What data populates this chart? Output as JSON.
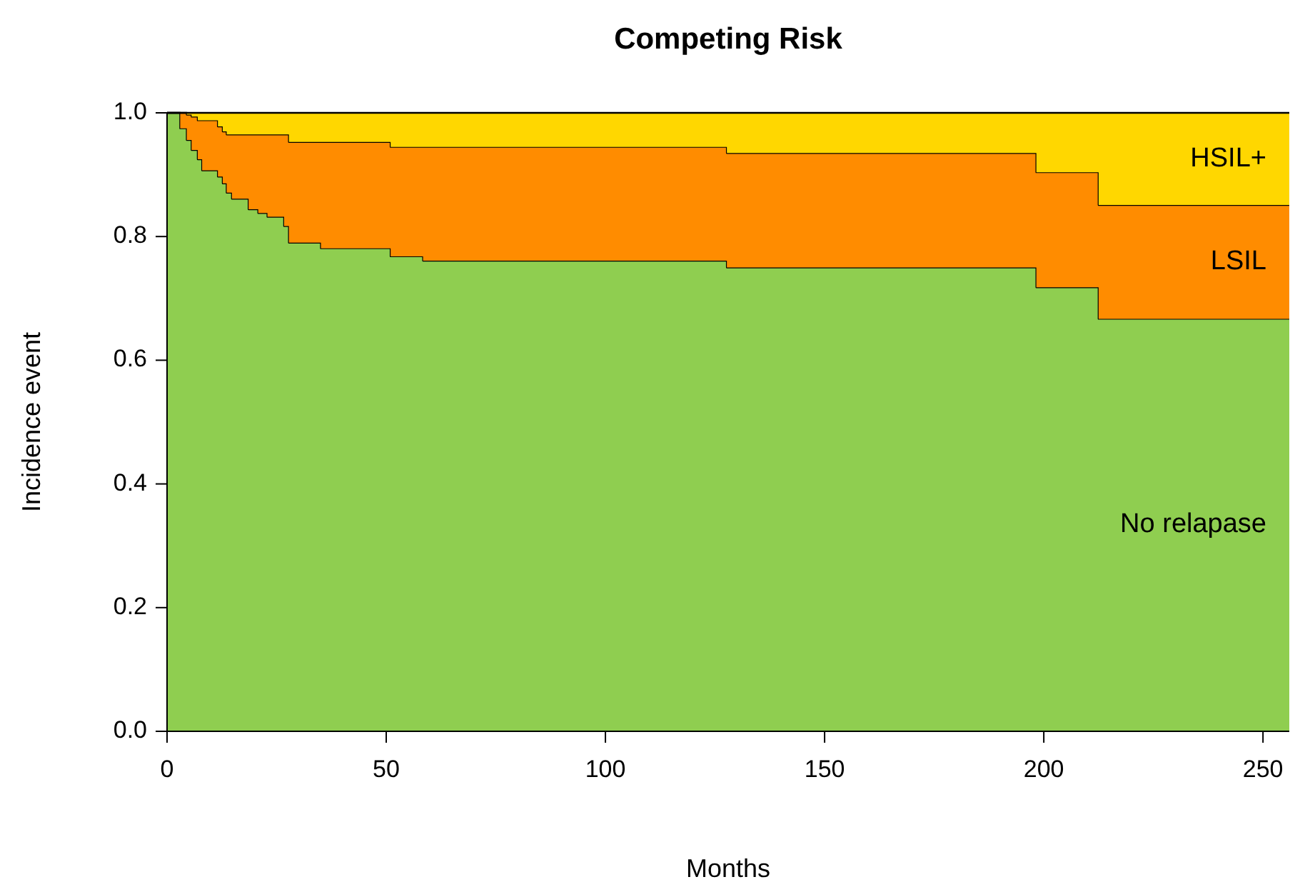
{
  "chart_data": {
    "type": "area",
    "title": "Competing Risk",
    "xlabel": "Months",
    "ylabel": "Incidence event",
    "stacked": true,
    "x": [
      0,
      3,
      3,
      4.5,
      4.5,
      5.6,
      5.6,
      7,
      7,
      8,
      8,
      11.6,
      11.6,
      12.7,
      12.7,
      13.6,
      13.6,
      14.8,
      14.8,
      18.6,
      18.6,
      20.8,
      20.8,
      22.9,
      22.9,
      26.7,
      26.7,
      27.8,
      27.8,
      35.1,
      35.1,
      51,
      51,
      58.4,
      58.4,
      127.7,
      127.7,
      198.3,
      198.3,
      212.5,
      212.5,
      256
    ],
    "series": [
      {
        "name": "No relapase",
        "color": "#8fce50",
        "values": [
          1,
          1,
          0.975,
          0.975,
          0.956,
          0.956,
          0.94,
          0.94,
          0.925,
          0.925,
          0.907,
          0.907,
          0.897,
          0.897,
          0.886,
          0.886,
          0.871,
          0.871,
          0.861,
          0.861,
          0.844,
          0.844,
          0.838,
          0.838,
          0.832,
          0.832,
          0.817,
          0.817,
          0.79,
          0.79,
          0.781,
          0.781,
          0.768,
          0.768,
          0.761,
          0.761,
          0.75,
          0.75,
          0.718,
          0.718,
          0.667,
          0.667
        ]
      },
      {
        "name": "LSIL",
        "color": "#ff8c00",
        "values": [
          0,
          0,
          0.025,
          0.025,
          0.041,
          0.041,
          0.054,
          0.054,
          0.063,
          0.063,
          0.081,
          0.081,
          0.081,
          0.081,
          0.084,
          0.084,
          0.094,
          0.094,
          0.104,
          0.104,
          0.121,
          0.121,
          0.127,
          0.127,
          0.133,
          0.133,
          0.148,
          0.148,
          0.163,
          0.163,
          0.172,
          0.172,
          0.177,
          0.177,
          0.184,
          0.184,
          0.185,
          0.185,
          0.186,
          0.186,
          0.184,
          0.184
        ]
      },
      {
        "name": "HSIL+",
        "color": "#ffd700",
        "values": [
          0,
          0,
          0,
          0,
          0.003,
          0.003,
          0.006,
          0.006,
          0.012,
          0.012,
          0.012,
          0.012,
          0.022,
          0.022,
          0.03,
          0.03,
          0.035,
          0.035,
          0.035,
          0.035,
          0.035,
          0.035,
          0.035,
          0.035,
          0.035,
          0.035,
          0.035,
          0.035,
          0.047,
          0.047,
          0.047,
          0.047,
          0.055,
          0.055,
          0.055,
          0.055,
          0.065,
          0.065,
          0.096,
          0.096,
          0.149,
          0.149
        ]
      }
    ],
    "xlim": [
      0,
      256
    ],
    "xticks": [
      0,
      50,
      100,
      150,
      200,
      250
    ],
    "ylim": [
      0,
      1
    ],
    "yticks": [
      {
        "value": 0,
        "label": "0.0"
      },
      {
        "value": 0.2,
        "label": "0.2"
      },
      {
        "value": 0.4,
        "label": "0.4"
      },
      {
        "value": 0.6,
        "label": "0.6"
      },
      {
        "value": 0.8,
        "label": "0.8"
      },
      {
        "value": 1,
        "label": "1.0"
      }
    ],
    "legend": false,
    "grid": false
  }
}
